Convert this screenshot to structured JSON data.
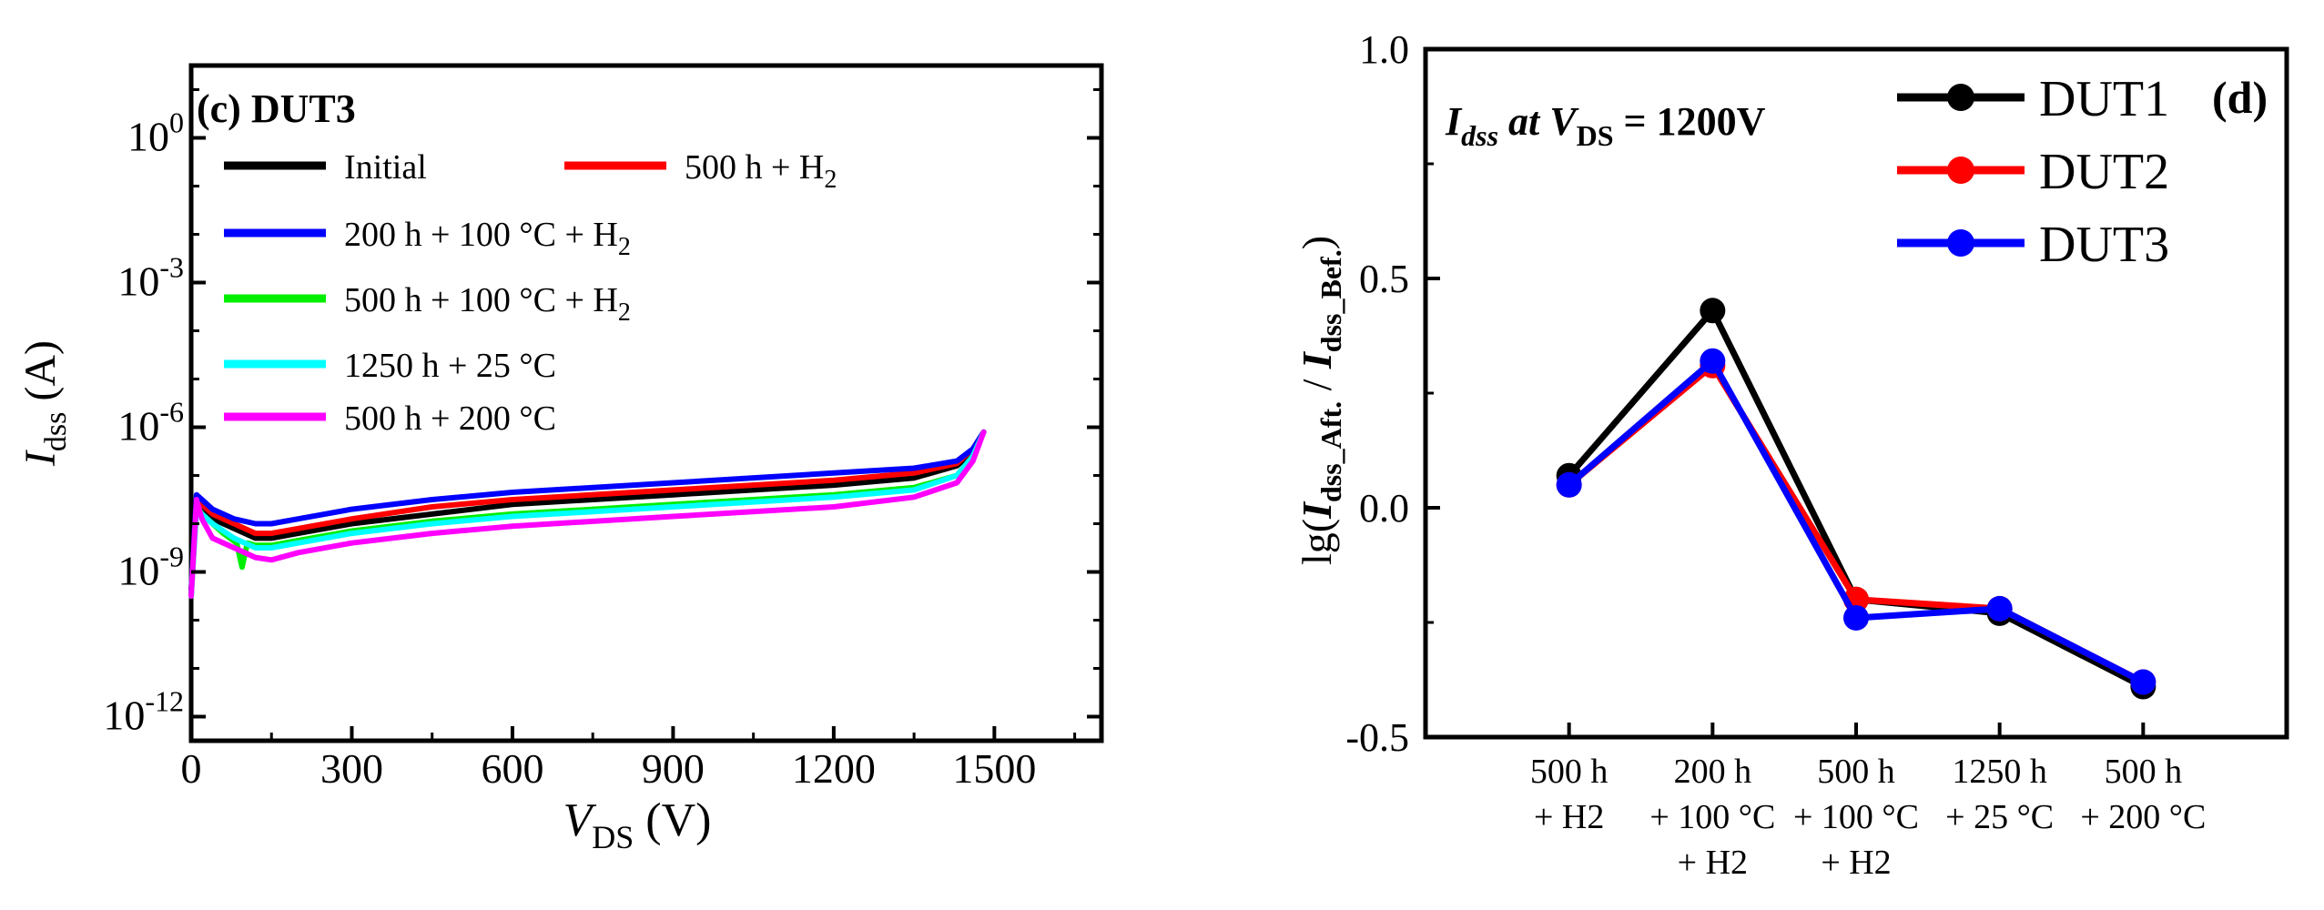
{
  "colors": {
    "initial": "#000000",
    "h2_500": "#ff0000",
    "h2_200_100c": "#0000ff",
    "h2_500_100c": "#00ee00",
    "t1250_25c": "#00ffff",
    "t500_200c": "#ff00ff",
    "dut1": "#000000",
    "dut2": "#ff0000",
    "dut3": "#0000ff"
  },
  "chart_data": [
    {
      "type": "line",
      "panel": "(c) DUT3",
      "title": "(c) DUT3",
      "xlabel_main": "V",
      "xlabel_sub": "DS",
      "xlabel_unit": " (V)",
      "ylabel_main": "I",
      "ylabel_sub": "dss",
      "ylabel_unit": " (A)",
      "xlim": [
        0,
        1700
      ],
      "ylim_log10": [
        -12.5,
        1.5
      ],
      "y_scale": "log",
      "x_ticks": [
        0,
        300,
        600,
        900,
        1200,
        1500
      ],
      "x_tick_labels": [
        "0",
        "300",
        "600",
        "900",
        "1200",
        "1500"
      ],
      "y_ticks": [
        {
          "base": "10",
          "exp": "0",
          "value": 0
        },
        {
          "base": "10",
          "exp": "-3",
          "value": -3
        },
        {
          "base": "10",
          "exp": "-6",
          "value": -6
        },
        {
          "base": "10",
          "exp": "-9",
          "value": -9
        },
        {
          "base": "10",
          "exp": "-12",
          "value": -12
        }
      ],
      "legend": [
        {
          "label": "Initial",
          "color_key": "initial"
        },
        {
          "label_main": "500 h + H",
          "label_sub": "2",
          "color_key": "h2_500"
        },
        {
          "label_main": "200 h + 100 °C + H",
          "label_sub": "2",
          "color_key": "h2_200_100c"
        },
        {
          "label_main": "500 h + 100 °C + H",
          "label_sub": "2",
          "color_key": "h2_500_100c"
        },
        {
          "label": "1250 h + 25 °C",
          "color_key": "t1250_25c"
        },
        {
          "label": "500 h + 200 °C",
          "color_key": "t500_200c"
        }
      ],
      "series": [
        {
          "name": "Initial",
          "color_key": "initial",
          "x": [
            0,
            10,
            20,
            40,
            80,
            120,
            150,
            200,
            300,
            450,
            600,
            900,
            1200,
            1350,
            1430,
            1460,
            1480
          ],
          "log10_y": [
            -9.4,
            -7.6,
            -7.7,
            -7.9,
            -8.1,
            -8.3,
            -8.3,
            -8.2,
            -8.0,
            -7.8,
            -7.6,
            -7.4,
            -7.2,
            -7.05,
            -6.8,
            -6.5,
            -6.1
          ]
        },
        {
          "name": "500 h + H2",
          "color_key": "h2_500",
          "x": [
            0,
            10,
            20,
            40,
            80,
            120,
            150,
            200,
            300,
            450,
            600,
            900,
            1200,
            1350,
            1430,
            1460,
            1480
          ],
          "log10_y": [
            -9.4,
            -7.5,
            -7.6,
            -7.8,
            -8.0,
            -8.2,
            -8.2,
            -8.1,
            -7.9,
            -7.65,
            -7.5,
            -7.3,
            -7.1,
            -6.95,
            -6.75,
            -6.45,
            -6.1
          ]
        },
        {
          "name": "200 h + 100 °C + H2",
          "color_key": "h2_200_100c",
          "x": [
            0,
            10,
            20,
            40,
            80,
            120,
            150,
            200,
            300,
            450,
            600,
            900,
            1200,
            1350,
            1430,
            1460,
            1480
          ],
          "log10_y": [
            -9.4,
            -7.4,
            -7.5,
            -7.7,
            -7.9,
            -8.0,
            -8.0,
            -7.9,
            -7.7,
            -7.5,
            -7.35,
            -7.15,
            -6.95,
            -6.85,
            -6.7,
            -6.45,
            -6.1
          ]
        },
        {
          "name": "500 h + 100 °C + H2",
          "color_key": "h2_500_100c",
          "x": [
            0,
            10,
            20,
            40,
            60,
            85,
            95,
            105,
            120,
            150,
            200,
            300,
            450,
            600,
            900,
            1200,
            1350,
            1430,
            1460,
            1480
          ],
          "log10_y": [
            -9.5,
            -7.6,
            -7.8,
            -8.0,
            -8.2,
            -8.4,
            -8.9,
            -8.4,
            -8.45,
            -8.45,
            -8.35,
            -8.15,
            -7.95,
            -7.8,
            -7.6,
            -7.4,
            -7.25,
            -7.0,
            -6.6,
            -6.1
          ]
        },
        {
          "name": "1250 h + 25 °C",
          "color_key": "t1250_25c",
          "x": [
            0,
            10,
            20,
            40,
            80,
            120,
            150,
            200,
            300,
            450,
            600,
            900,
            1200,
            1350,
            1430,
            1460,
            1480
          ],
          "log10_y": [
            -9.5,
            -7.7,
            -7.8,
            -8.0,
            -8.3,
            -8.5,
            -8.5,
            -8.4,
            -8.2,
            -8.0,
            -7.85,
            -7.65,
            -7.45,
            -7.3,
            -7.0,
            -6.6,
            -6.1
          ]
        },
        {
          "name": "500 h + 200 °C",
          "color_key": "t500_200c",
          "x": [
            0,
            10,
            20,
            40,
            80,
            120,
            150,
            200,
            300,
            450,
            600,
            900,
            1200,
            1350,
            1430,
            1460,
            1480
          ],
          "log10_y": [
            -9.5,
            -7.5,
            -7.9,
            -8.3,
            -8.5,
            -8.7,
            -8.75,
            -8.6,
            -8.4,
            -8.2,
            -8.05,
            -7.85,
            -7.65,
            -7.45,
            -7.15,
            -6.7,
            -6.1
          ]
        }
      ]
    },
    {
      "type": "line",
      "panel": "(d)",
      "title": "(d)",
      "annotation": {
        "i": "I",
        "i_sub": "dss",
        "mid": " at V",
        "v_sub": "DS",
        "tail": " = 1200V"
      },
      "ylabel": {
        "prefix": "lg(",
        "i1": "I",
        "i1_sub": "dss_Aft.",
        "sep": " / ",
        "i2": "I",
        "i2_sub": "dss_Bef.",
        "suffix": ")"
      },
      "ylim": [
        -0.5,
        1.0
      ],
      "y_ticks": [
        -0.5,
        0.0,
        0.5,
        1.0
      ],
      "y_tick_labels": [
        "-0.5",
        "0.0",
        "0.5",
        "1.0"
      ],
      "categories": [
        [
          "500 h",
          "+ H2"
        ],
        [
          "200 h",
          "+ 100 °C",
          "+ H2"
        ],
        [
          "500 h",
          "+ 100 °C",
          "+ H2"
        ],
        [
          "1250 h",
          "+ 25 °C"
        ],
        [
          "500 h",
          "+ 200 °C"
        ]
      ],
      "legend": [
        {
          "label": "DUT1",
          "color_key": "dut1"
        },
        {
          "label": "DUT2",
          "color_key": "dut2"
        },
        {
          "label": "DUT3",
          "color_key": "dut3"
        }
      ],
      "legend_position": "top-right",
      "series": [
        {
          "name": "DUT1",
          "color_key": "dut1",
          "values": [
            0.07,
            0.43,
            -0.2,
            -0.23,
            -0.39
          ]
        },
        {
          "name": "DUT2",
          "color_key": "dut2",
          "values": [
            0.05,
            0.31,
            -0.2,
            -0.22,
            -0.38
          ]
        },
        {
          "name": "DUT3",
          "color_key": "dut3",
          "values": [
            0.05,
            0.32,
            -0.24,
            -0.22,
            -0.38
          ]
        }
      ]
    }
  ]
}
